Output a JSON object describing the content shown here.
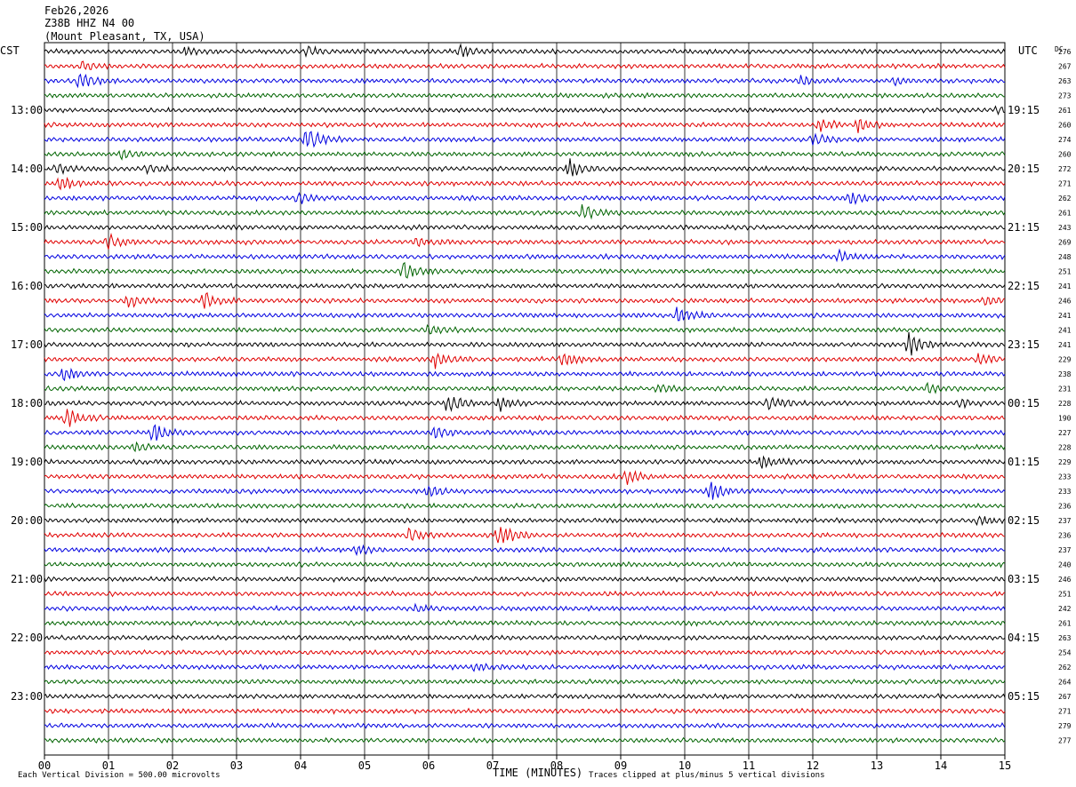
{
  "header": {
    "date": "Feb26,2026",
    "station": "Z38B HHZ N4 00",
    "location": "(Mount Pleasant, TX, USA)"
  },
  "left_timezone": "CST",
  "right_timezone": "UTC",
  "dc_label": "DC",
  "footer": {
    "scale_note": "Each Vertical Division =  500.00 microvolts",
    "xlabel": "TIME (MINUTES)",
    "clip_note": "Traces clipped at plus/minus 5 vertical divisions"
  },
  "colors": {
    "trace_cycle": [
      "#000000",
      "#e00000",
      "#0000e0",
      "#006400"
    ],
    "grid": "#000000"
  },
  "chart_data": {
    "type": "line",
    "x_ticks": [
      "00",
      "01",
      "02",
      "03",
      "04",
      "05",
      "06",
      "07",
      "08",
      "09",
      "10",
      "11",
      "12",
      "13",
      "14",
      "15"
    ],
    "xlim": [
      0,
      15
    ],
    "left_hour_labels": [
      "13:00",
      "14:00",
      "15:00",
      "16:00",
      "17:00",
      "18:00",
      "19:00",
      "20:00",
      "21:00",
      "22:00",
      "23:00"
    ],
    "right_hour_labels": [
      "19:15",
      "20:15",
      "21:15",
      "22:15",
      "23:15",
      "00:15",
      "01:15",
      "02:15",
      "03:15",
      "04:15",
      "05:15"
    ],
    "dc_offsets": [
      276,
      267,
      263,
      273,
      261,
      260,
      274,
      260,
      272,
      271,
      262,
      261,
      243,
      269,
      248,
      251,
      241,
      246,
      241,
      241,
      241,
      229,
      238,
      231,
      228,
      190,
      227,
      228,
      229,
      233,
      233,
      236,
      237,
      236,
      237,
      240,
      246,
      251,
      242,
      261,
      263,
      254,
      262,
      264,
      267,
      271,
      279,
      277
    ],
    "events": [
      {
        "trace": 0,
        "minute": 4.1,
        "amp": 5
      },
      {
        "trace": 0,
        "minute": 6.5,
        "amp": 6
      },
      {
        "trace": 0,
        "minute": 2.2,
        "amp": 4
      },
      {
        "trace": 1,
        "minute": 0.6,
        "amp": 5
      },
      {
        "trace": 2,
        "minute": 0.55,
        "amp": 9
      },
      {
        "trace": 2,
        "minute": 11.8,
        "amp": 5
      },
      {
        "trace": 2,
        "minute": 13.3,
        "amp": 4
      },
      {
        "trace": 4,
        "minute": 14.9,
        "amp": 4
      },
      {
        "trace": 5,
        "minute": 12.7,
        "amp": 7
      },
      {
        "trace": 5,
        "minute": 12.1,
        "amp": 6
      },
      {
        "trace": 6,
        "minute": 4.1,
        "amp": 14
      },
      {
        "trace": 6,
        "minute": 12.0,
        "amp": 6
      },
      {
        "trace": 7,
        "minute": 1.2,
        "amp": 5
      },
      {
        "trace": 8,
        "minute": 8.2,
        "amp": 9
      },
      {
        "trace": 8,
        "minute": 1.6,
        "amp": 5
      },
      {
        "trace": 8,
        "minute": 0.2,
        "amp": 5
      },
      {
        "trace": 9,
        "minute": 0.25,
        "amp": 8
      },
      {
        "trace": 10,
        "minute": 3.95,
        "amp": 6
      },
      {
        "trace": 10,
        "minute": 12.6,
        "amp": 7
      },
      {
        "trace": 11,
        "minute": 8.4,
        "amp": 9
      },
      {
        "trace": 13,
        "minute": 1.0,
        "amp": 8
      },
      {
        "trace": 13,
        "minute": 5.8,
        "amp": 5
      },
      {
        "trace": 14,
        "minute": 12.4,
        "amp": 6
      },
      {
        "trace": 15,
        "minute": 5.6,
        "amp": 12
      },
      {
        "trace": 17,
        "minute": 1.3,
        "amp": 7
      },
      {
        "trace": 17,
        "minute": 2.5,
        "amp": 8
      },
      {
        "trace": 17,
        "minute": 14.7,
        "amp": 6
      },
      {
        "trace": 18,
        "minute": 9.9,
        "amp": 10
      },
      {
        "trace": 19,
        "minute": 6.0,
        "amp": 5
      },
      {
        "trace": 20,
        "minute": 13.5,
        "amp": 12
      },
      {
        "trace": 21,
        "minute": 6.1,
        "amp": 8
      },
      {
        "trace": 21,
        "minute": 8.1,
        "amp": 7
      },
      {
        "trace": 21,
        "minute": 14.6,
        "amp": 5
      },
      {
        "trace": 22,
        "minute": 0.3,
        "amp": 7
      },
      {
        "trace": 23,
        "minute": 9.6,
        "amp": 5
      },
      {
        "trace": 23,
        "minute": 13.8,
        "amp": 5
      },
      {
        "trace": 24,
        "minute": 6.3,
        "amp": 11
      },
      {
        "trace": 24,
        "minute": 7.1,
        "amp": 8
      },
      {
        "trace": 24,
        "minute": 11.3,
        "amp": 7
      },
      {
        "trace": 24,
        "minute": 14.3,
        "amp": 4
      },
      {
        "trace": 25,
        "minute": 0.35,
        "amp": 11
      },
      {
        "trace": 26,
        "minute": 1.7,
        "amp": 10
      },
      {
        "trace": 26,
        "minute": 6.1,
        "amp": 6
      },
      {
        "trace": 27,
        "minute": 1.4,
        "amp": 5
      },
      {
        "trace": 28,
        "minute": 11.2,
        "amp": 9
      },
      {
        "trace": 29,
        "minute": 9.1,
        "amp": 7
      },
      {
        "trace": 30,
        "minute": 10.4,
        "amp": 11
      },
      {
        "trace": 30,
        "minute": 6.0,
        "amp": 6
      },
      {
        "trace": 32,
        "minute": 14.6,
        "amp": 5
      },
      {
        "trace": 33,
        "minute": 5.7,
        "amp": 8
      },
      {
        "trace": 33,
        "minute": 7.1,
        "amp": 12
      },
      {
        "trace": 34,
        "minute": 4.9,
        "amp": 5
      },
      {
        "trace": 38,
        "minute": 5.8,
        "amp": 4
      },
      {
        "trace": 42,
        "minute": 6.7,
        "amp": 4
      }
    ]
  }
}
